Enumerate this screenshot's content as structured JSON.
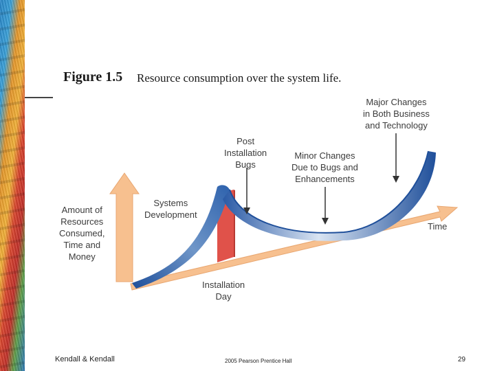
{
  "figure": {
    "number": "Figure 1.5",
    "caption": "Resource consumption over the system life."
  },
  "diagram": {
    "y_axis_label": [
      "Amount of",
      "Resources",
      "Consumed,",
      "Time and",
      "Money"
    ],
    "x_axis_label": "Time",
    "systems_development_label": [
      "Systems",
      "Development"
    ],
    "post_installation_bugs_label": [
      "Post",
      "Installation",
      "Bugs"
    ],
    "minor_changes_label": [
      "Minor Changes",
      "Due to Bugs and",
      "Enhancements"
    ],
    "major_changes_label": [
      "Major Changes",
      "in Both Business",
      "and Technology"
    ],
    "installation_day_label": [
      "Installation",
      "Day"
    ]
  },
  "footer": {
    "authors": "Kendall & Kendall",
    "copyright": "2005 Pearson Prentice Hall",
    "page_number": "29"
  }
}
